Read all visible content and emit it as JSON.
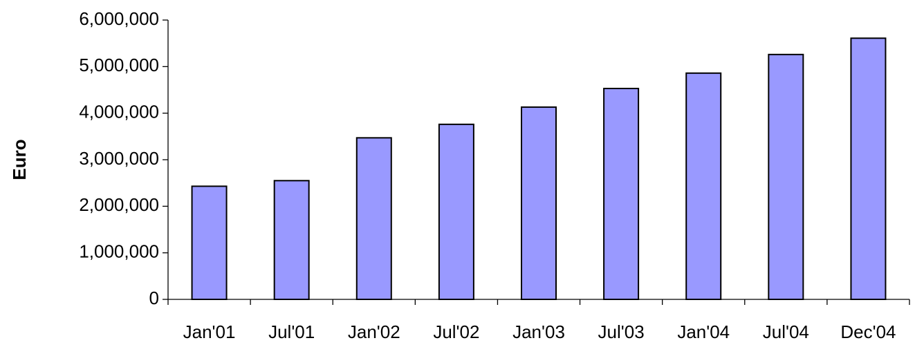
{
  "chart_data": {
    "type": "bar",
    "y_label": "Euro",
    "categories": [
      "Jan'01",
      "Jul'01",
      "Jan'02",
      "Jul'02",
      "Jan'03",
      "Jul'03",
      "Jan'04",
      "Jul'04",
      "Dec'04"
    ],
    "values": [
      2430000,
      2550000,
      3470000,
      3760000,
      4130000,
      4530000,
      4860000,
      5260000,
      5610000
    ],
    "color": "#9999ff",
    "ylim": [
      0,
      6000000
    ],
    "yticks": [
      0,
      {
        "value": 1000000,
        "label": "1,000,000"
      },
      {
        "value": 2000000,
        "label": "2,000,000"
      },
      {
        "value": 3000000,
        "label": "3,000,000"
      },
      {
        "value": 4000000,
        "label": "4,000,000"
      },
      {
        "value": 5000000,
        "label": "5,000,000"
      },
      {
        "value": 6000000,
        "label": "6,000,000"
      }
    ],
    "grid": false
  }
}
